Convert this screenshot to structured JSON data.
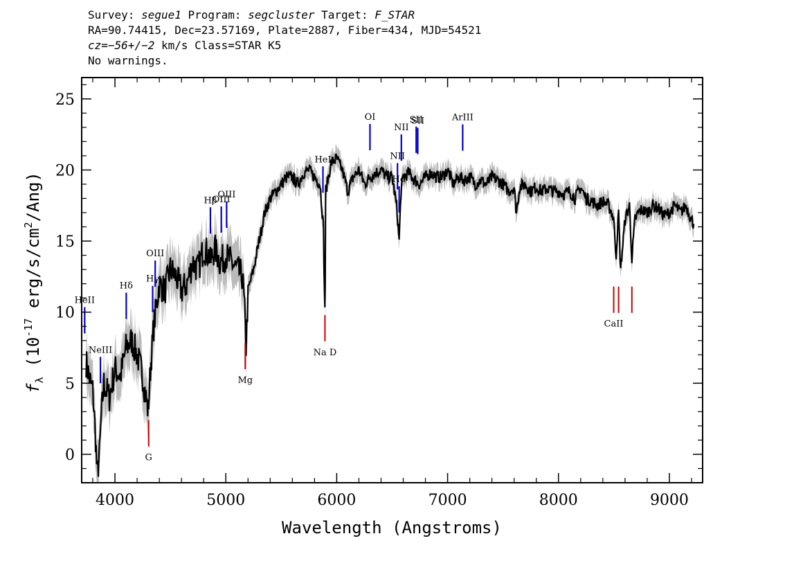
{
  "header": {
    "line1": {
      "survey_label": "Survey: ",
      "survey": "segue1",
      "program_label": " Program: ",
      "program": "segcluster",
      "target_label": " Target: ",
      "target": "F_STAR"
    },
    "line2": "RA=90.74415, Dec=23.57169, Plate=2887, Fiber=434, MJD=54521",
    "line3": {
      "cz_label": "cz=",
      "cz": "−56+/−2",
      "rest": " km/s Class=STAR K5"
    },
    "line4": "No warnings."
  },
  "chart_data": {
    "type": "line",
    "xlabel": "Wavelength (Angstroms)",
    "ylabel": "f_λ (10^-17 erg/s/cm^2/Ang)",
    "xlim": [
      3700,
      9300
    ],
    "ylim": [
      -2,
      26.5
    ],
    "x_ticks": [
      4000,
      5000,
      6000,
      7000,
      8000,
      9000
    ],
    "y_ticks": [
      0,
      5,
      10,
      15,
      20,
      25
    ],
    "series": [
      {
        "x": [
          3740,
          3780,
          3800,
          3820,
          3840,
          3860,
          3880,
          3900,
          3950,
          4000,
          4050,
          4100,
          4150,
          4200,
          4250,
          4300,
          4320,
          4350,
          4400,
          4450,
          4500,
          4550,
          4600,
          4650,
          4700,
          4750,
          4800,
          4850,
          4860,
          4900,
          4950,
          5000,
          5050,
          5100,
          5150,
          5170,
          5183,
          5200,
          5250,
          5300,
          5350,
          5400,
          5450,
          5500,
          5550,
          5600,
          5650,
          5700,
          5750,
          5800,
          5850,
          5880,
          5890,
          5893,
          5896,
          5900,
          5950,
          6000,
          6050,
          6100,
          6150,
          6200,
          6250,
          6300,
          6350,
          6400,
          6450,
          6500,
          6540,
          6563,
          6580,
          6600,
          6650,
          6700,
          6750,
          6800,
          6850,
          6900,
          6950,
          7000,
          7050,
          7100,
          7150,
          7200,
          7250,
          7300,
          7350,
          7400,
          7450,
          7500,
          7550,
          7600,
          7620,
          7650,
          7700,
          7750,
          7800,
          7850,
          7900,
          7950,
          8000,
          8050,
          8100,
          8150,
          8200,
          8250,
          8300,
          8350,
          8400,
          8450,
          8480,
          8498,
          8520,
          8542,
          8560,
          8600,
          8640,
          8662,
          8690,
          8720,
          8750,
          8800,
          8850,
          8900,
          8950,
          9000,
          9050,
          9100,
          9150,
          9200,
          9220
        ],
        "y": [
          6.5,
          5.0,
          4.5,
          2.0,
          -1.5,
          0.0,
          3.0,
          5.0,
          4.0,
          6.0,
          5.5,
          7.5,
          8.0,
          7.0,
          5.5,
          3.0,
          6.0,
          9.0,
          12.0,
          11.5,
          13.0,
          12.5,
          11.5,
          12.0,
          13.5,
          13.0,
          14.5,
          14.0,
          13.5,
          14.5,
          13.5,
          14.0,
          13.5,
          13.0,
          12.5,
          10.0,
          7.5,
          11.5,
          13.0,
          15.0,
          17.0,
          18.0,
          18.5,
          19.0,
          19.5,
          19.5,
          19.0,
          19.8,
          20.0,
          19.5,
          19.0,
          16.0,
          11.0,
          10.5,
          12.0,
          18.5,
          20.5,
          20.8,
          20.0,
          18.5,
          19.5,
          20.0,
          19.0,
          19.5,
          19.8,
          20.0,
          19.5,
          19.5,
          17.5,
          15.0,
          18.5,
          19.5,
          19.8,
          19.3,
          19.0,
          19.5,
          19.8,
          19.5,
          19.5,
          20.0,
          19.0,
          19.5,
          19.3,
          19.5,
          19.0,
          19.3,
          19.0,
          19.5,
          19.3,
          19.0,
          18.5,
          18.8,
          17.0,
          18.8,
          19.0,
          18.5,
          18.8,
          18.5,
          18.7,
          18.5,
          18.5,
          18.3,
          18.5,
          18.0,
          18.8,
          18.0,
          17.8,
          17.5,
          17.8,
          17.5,
          17.0,
          16.5,
          14.0,
          17.0,
          13.0,
          16.5,
          17.5,
          13.8,
          16.5,
          17.0,
          17.2,
          17.0,
          17.5,
          17.3,
          16.8,
          17.0,
          17.5,
          17.0,
          17.5,
          16.5,
          16.2
        ],
        "color": "#000000",
        "error_color": "#bbbbbb"
      }
    ],
    "emission_lines": [
      {
        "label": "HeII",
        "x": 3727,
        "color": "#0000cc"
      },
      {
        "label": "NeIII",
        "x": 3869,
        "color": "#0000cc"
      },
      {
        "label": "Hδ",
        "x": 4102,
        "color": "#0000cc"
      },
      {
        "label": "Hγ",
        "x": 4340,
        "color": "#0000cc"
      },
      {
        "label": "OIII",
        "x": 4363,
        "color": "#0000cc"
      },
      {
        "label": "Hβ",
        "x": 4861,
        "color": "#0000cc"
      },
      {
        "label": "OIII",
        "x": 4959,
        "color": "#0000cc"
      },
      {
        "label": "OIII",
        "x": 5007,
        "color": "#0000cc"
      },
      {
        "label": "HeI",
        "x": 5876,
        "color": "#0000cc"
      },
      {
        "label": "OI",
        "x": 6300,
        "color": "#0000cc"
      },
      {
        "label": "NII",
        "x": 6548,
        "color": "#0000cc"
      },
      {
        "label": "Hα",
        "x": 6563,
        "color": "#0000cc"
      },
      {
        "label": "NII",
        "x": 6583,
        "color": "#0000cc"
      },
      {
        "label": "SII",
        "x": 6717,
        "color": "#0000cc"
      },
      {
        "label": "SII",
        "x": 6731,
        "color": "#0000cc"
      },
      {
        "label": "ArIII",
        "x": 7136,
        "color": "#0000cc"
      }
    ],
    "absorption_lines": [
      {
        "label": "G",
        "x": 4304,
        "color": "#cc0000"
      },
      {
        "label": "Mg",
        "x": 5175,
        "color": "#cc0000"
      },
      {
        "label": "Na D",
        "x": 5894,
        "color": "#cc0000"
      },
      {
        "label": "CaII",
        "x": 8498,
        "color": "#cc0000"
      },
      {
        "label": "",
        "x": 8542,
        "color": "#cc0000"
      },
      {
        "label": "",
        "x": 8662,
        "color": "#cc0000"
      }
    ]
  }
}
